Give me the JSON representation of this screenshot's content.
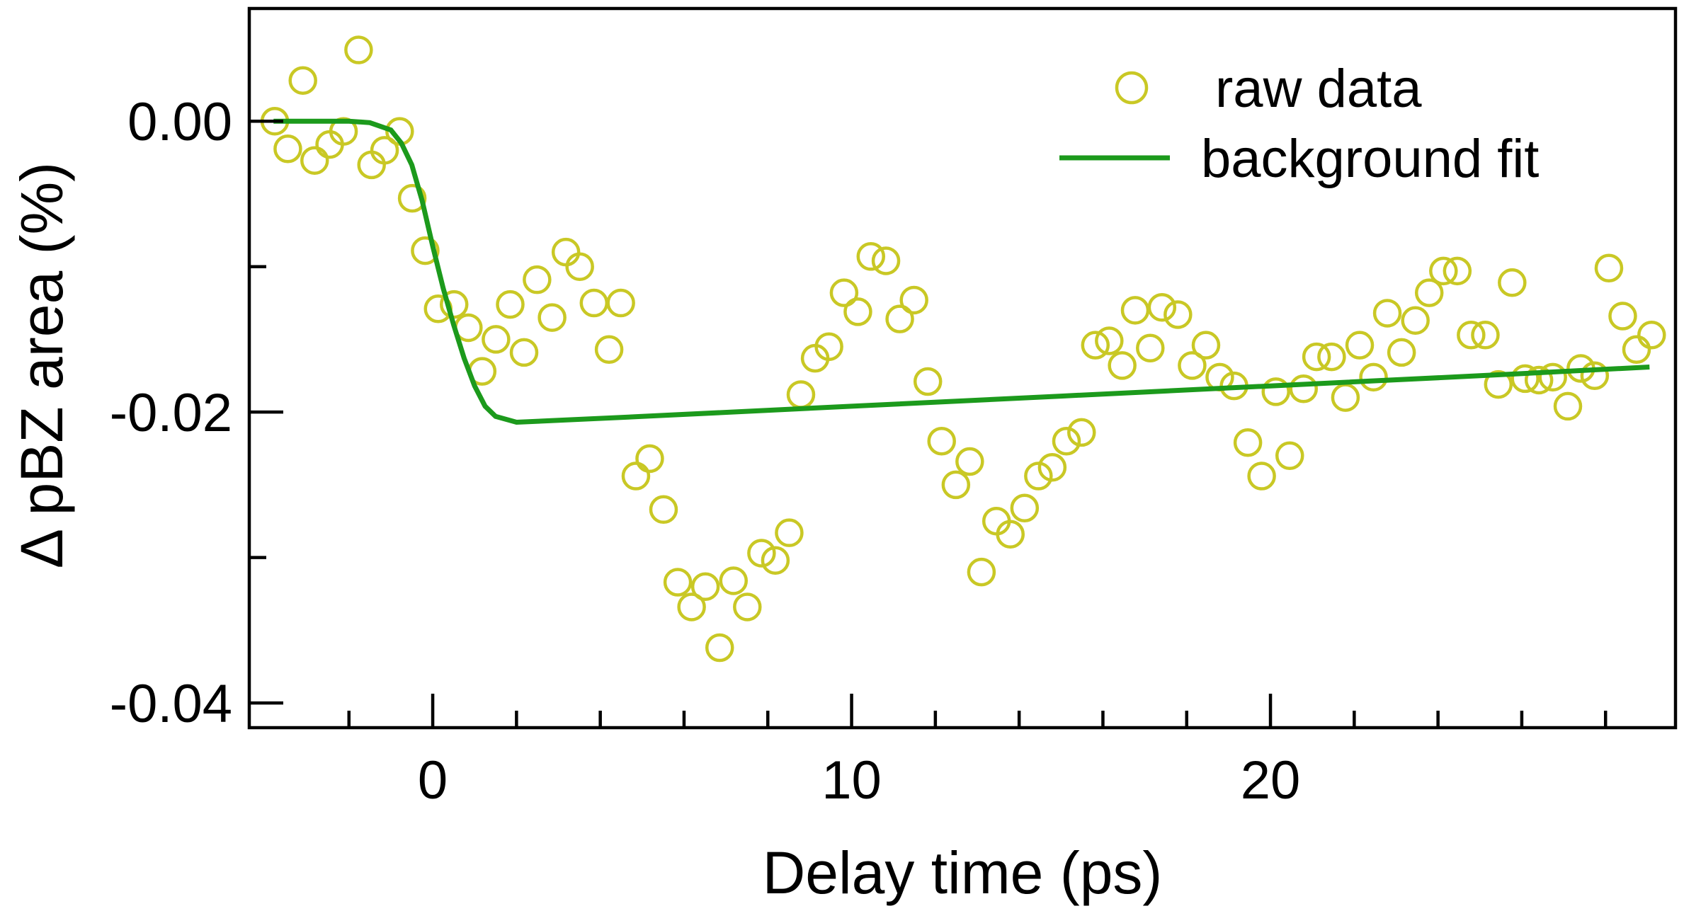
{
  "chart_data": {
    "type": "scatter",
    "xlabel": "Delay time (ps)",
    "ylabel": "Δ pBZ area (%)",
    "xlim": [
      -4.38,
      29.67
    ],
    "ylim": [
      -0.0417,
      0.00775
    ],
    "xticks": [
      0,
      10,
      20
    ],
    "yticks": [
      {
        "value": 0,
        "label": "0.00"
      },
      -0.02,
      -0.04
    ],
    "xminor_ticks": [
      -2,
      2,
      4,
      6,
      8,
      12,
      14,
      16,
      18,
      22,
      24,
      26,
      28
    ],
    "yminor_ticks": [
      -0.01,
      -0.03
    ],
    "legend": "upper right",
    "series": [
      {
        "name": "raw data",
        "color": "#c9c825",
        "marker": "circle",
        "x": [
          -3.77,
          -3.46,
          -3.1,
          -2.82,
          -2.46,
          -2.13,
          -1.77,
          -1.46,
          -1.15,
          -0.79,
          -0.49,
          -0.18,
          0.13,
          0.51,
          0.85,
          1.18,
          1.51,
          1.85,
          2.18,
          2.49,
          2.85,
          3.18,
          3.51,
          3.85,
          4.21,
          4.49,
          4.85,
          5.18,
          5.51,
          5.85,
          6.18,
          6.51,
          6.85,
          7.18,
          7.51,
          7.85,
          8.18,
          8.51,
          8.79,
          9.13,
          9.46,
          9.82,
          10.15,
          10.46,
          10.82,
          11.15,
          11.49,
          11.82,
          12.15,
          12.49,
          12.82,
          13.1,
          13.46,
          13.79,
          14.13,
          14.46,
          14.79,
          15.13,
          15.49,
          15.82,
          16.15,
          16.46,
          16.77,
          17.13,
          17.41,
          17.79,
          18.13,
          18.46,
          18.79,
          19.13,
          19.46,
          19.79,
          20.13,
          20.46,
          20.79,
          21.1,
          21.46,
          21.79,
          22.13,
          22.46,
          22.79,
          23.13,
          23.46,
          23.79,
          24.13,
          24.46,
          24.79,
          25.13,
          25.44,
          25.77,
          26.08,
          26.41,
          26.74,
          27.1,
          27.41,
          27.74,
          28.08,
          28.41,
          28.74,
          29.1
        ],
        "values": [
          0.0,
          -0.0019,
          0.0028,
          -0.0027,
          -0.0016,
          -0.0007,
          0.0049,
          -0.003,
          -0.002,
          -0.0007,
          -0.0053,
          -0.0089,
          -0.0129,
          -0.0126,
          -0.0142,
          -0.0172,
          -0.015,
          -0.0126,
          -0.0159,
          -0.0109,
          -0.0135,
          -0.009,
          -0.01,
          -0.0125,
          -0.0157,
          -0.0125,
          -0.0244,
          -0.0232,
          -0.0267,
          -0.0317,
          -0.0334,
          -0.032,
          -0.0362,
          -0.0316,
          -0.0334,
          -0.0297,
          -0.0302,
          -0.0283,
          -0.0188,
          -0.0163,
          -0.0155,
          -0.0118,
          -0.0131,
          -0.0093,
          -0.0096,
          -0.0136,
          -0.0123,
          -0.0179,
          -0.022,
          -0.025,
          -0.0234,
          -0.031,
          -0.0275,
          -0.0284,
          -0.0266,
          -0.0244,
          -0.0238,
          -0.022,
          -0.0214,
          -0.0154,
          -0.0151,
          -0.0168,
          -0.013,
          -0.0156,
          -0.0128,
          -0.0133,
          -0.0168,
          -0.0154,
          -0.0176,
          -0.0182,
          -0.0221,
          -0.0244,
          -0.0186,
          -0.023,
          -0.0184,
          -0.0162,
          -0.0162,
          -0.019,
          -0.0154,
          -0.0176,
          -0.0132,
          -0.0159,
          -0.0137,
          -0.0118,
          -0.0103,
          -0.0103,
          -0.0147,
          -0.0147,
          -0.0181,
          -0.0111,
          -0.0177,
          -0.0178,
          -0.0176,
          -0.0196,
          -0.017,
          -0.0175,
          -0.0101,
          -0.0134,
          -0.0157,
          -0.0147
        ]
      },
      {
        "name": "background fit",
        "color": "#1c9a1c",
        "marker": "line",
        "x": [
          -3.8,
          -2,
          -1.5,
          -1.0,
          -0.75,
          -0.5,
          -0.25,
          0,
          0.25,
          0.5,
          0.75,
          1,
          1.25,
          1.5,
          2,
          5,
          10,
          15,
          20,
          25,
          29.05
        ],
        "values": [
          0,
          0,
          -0.0001,
          -0.0006,
          -0.0015,
          -0.003,
          -0.0055,
          -0.0086,
          -0.0115,
          -0.014,
          -0.0163,
          -0.0182,
          -0.0196,
          -0.0203,
          -0.0207,
          -0.0203,
          -0.0196,
          -0.0189,
          -0.0182,
          -0.0175,
          -0.0169
        ]
      }
    ]
  }
}
